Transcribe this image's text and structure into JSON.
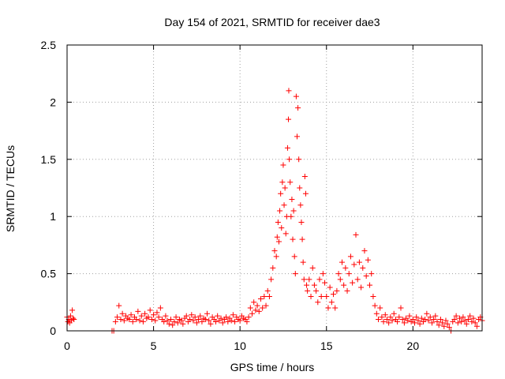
{
  "chart_data": {
    "type": "scatter",
    "title": "Day 154 of 2021, SRMTID for receiver dae3",
    "xlabel": "GPS time / hours",
    "ylabel": "SRMTID / TECUs",
    "xlim": [
      0,
      24
    ],
    "ylim": [
      0,
      2.5
    ],
    "x_ticks": [
      0,
      5,
      10,
      15,
      20
    ],
    "x_tick_labels": [
      "0",
      "5",
      "10",
      "15",
      "20"
    ],
    "y_ticks": [
      0,
      0.5,
      1,
      1.5,
      2,
      2.5
    ],
    "y_tick_labels": [
      "0",
      "0.5",
      "1",
      "1.5",
      "2",
      "2.5"
    ],
    "grid": true,
    "marker": "plus",
    "color": "#ff0000",
    "series": [
      {
        "name": "dae3",
        "points": [
          [
            0.0,
            0.12
          ],
          [
            0.05,
            0.08
          ],
          [
            0.1,
            0.1
          ],
          [
            0.15,
            0.07
          ],
          [
            0.2,
            0.13
          ],
          [
            0.25,
            0.09
          ],
          [
            0.3,
            0.18
          ],
          [
            0.35,
            0.11
          ],
          [
            0.4,
            0.1
          ],
          [
            2.6,
            0.0
          ],
          [
            2.7,
            0.0
          ],
          [
            2.8,
            0.08
          ],
          [
            2.9,
            0.12
          ],
          [
            3.0,
            0.22
          ],
          [
            3.1,
            0.1
          ],
          [
            3.2,
            0.15
          ],
          [
            3.3,
            0.09
          ],
          [
            3.4,
            0.13
          ],
          [
            3.5,
            0.11
          ],
          [
            3.6,
            0.1
          ],
          [
            3.7,
            0.14
          ],
          [
            3.8,
            0.08
          ],
          [
            3.9,
            0.12
          ],
          [
            4.0,
            0.1
          ],
          [
            4.1,
            0.17
          ],
          [
            4.2,
            0.09
          ],
          [
            4.3,
            0.13
          ],
          [
            4.4,
            0.08
          ],
          [
            4.5,
            0.15
          ],
          [
            4.6,
            0.11
          ],
          [
            4.7,
            0.12
          ],
          [
            4.8,
            0.18
          ],
          [
            4.9,
            0.1
          ],
          [
            5.0,
            0.14
          ],
          [
            5.1,
            0.09
          ],
          [
            5.2,
            0.16
          ],
          [
            5.3,
            0.12
          ],
          [
            5.4,
            0.2
          ],
          [
            5.5,
            0.1
          ],
          [
            5.6,
            0.08
          ],
          [
            5.7,
            0.13
          ],
          [
            5.8,
            0.09
          ],
          [
            5.9,
            0.06
          ],
          [
            6.0,
            0.1
          ],
          [
            6.1,
            0.05
          ],
          [
            6.2,
            0.08
          ],
          [
            6.3,
            0.12
          ],
          [
            6.4,
            0.07
          ],
          [
            6.5,
            0.1
          ],
          [
            6.6,
            0.09
          ],
          [
            6.7,
            0.06
          ],
          [
            6.8,
            0.11
          ],
          [
            6.9,
            0.13
          ],
          [
            7.0,
            0.08
          ],
          [
            7.1,
            0.1
          ],
          [
            7.2,
            0.14
          ],
          [
            7.3,
            0.09
          ],
          [
            7.4,
            0.12
          ],
          [
            7.5,
            0.07
          ],
          [
            7.6,
            0.1
          ],
          [
            7.7,
            0.13
          ],
          [
            7.8,
            0.08
          ],
          [
            7.9,
            0.11
          ],
          [
            8.0,
            0.1
          ],
          [
            8.1,
            0.15
          ],
          [
            8.2,
            0.09
          ],
          [
            8.3,
            0.06
          ],
          [
            8.4,
            0.12
          ],
          [
            8.5,
            0.1
          ],
          [
            8.6,
            0.08
          ],
          [
            8.7,
            0.13
          ],
          [
            8.8,
            0.09
          ],
          [
            8.9,
            0.11
          ],
          [
            9.0,
            0.07
          ],
          [
            9.1,
            0.1
          ],
          [
            9.2,
            0.12
          ],
          [
            9.3,
            0.08
          ],
          [
            9.4,
            0.11
          ],
          [
            9.5,
            0.09
          ],
          [
            9.6,
            0.14
          ],
          [
            9.7,
            0.08
          ],
          [
            9.8,
            0.12
          ],
          [
            9.9,
            0.1
          ],
          [
            10.0,
            0.09
          ],
          [
            10.1,
            0.13
          ],
          [
            10.2,
            0.11
          ],
          [
            10.3,
            0.1
          ],
          [
            10.4,
            0.08
          ],
          [
            10.5,
            0.12
          ],
          [
            10.6,
            0.2
          ],
          [
            10.7,
            0.15
          ],
          [
            10.8,
            0.25
          ],
          [
            10.9,
            0.18
          ],
          [
            11.0,
            0.22
          ],
          [
            11.1,
            0.17
          ],
          [
            11.2,
            0.28
          ],
          [
            11.3,
            0.2
          ],
          [
            11.4,
            0.3
          ],
          [
            11.5,
            0.22
          ],
          [
            11.6,
            0.35
          ],
          [
            11.7,
            0.3
          ],
          [
            11.8,
            0.45
          ],
          [
            11.9,
            0.55
          ],
          [
            12.0,
            0.7
          ],
          [
            12.1,
            0.65
          ],
          [
            12.15,
            0.82
          ],
          [
            12.2,
            0.95
          ],
          [
            12.25,
            0.78
          ],
          [
            12.3,
            1.05
          ],
          [
            12.35,
            1.2
          ],
          [
            12.4,
            0.9
          ],
          [
            12.45,
            1.3
          ],
          [
            12.5,
            1.45
          ],
          [
            12.55,
            1.1
          ],
          [
            12.6,
            1.25
          ],
          [
            12.65,
            0.85
          ],
          [
            12.7,
            1.0
          ],
          [
            12.75,
            1.6
          ],
          [
            12.8,
            1.85
          ],
          [
            12.82,
            2.1
          ],
          [
            12.85,
            1.5
          ],
          [
            12.9,
            1.3
          ],
          [
            12.95,
            1.0
          ],
          [
            13.0,
            1.15
          ],
          [
            13.05,
            0.8
          ],
          [
            13.1,
            1.05
          ],
          [
            13.15,
            0.65
          ],
          [
            13.2,
            0.5
          ],
          [
            13.25,
            2.05
          ],
          [
            13.3,
            1.7
          ],
          [
            13.35,
            1.95
          ],
          [
            13.4,
            1.5
          ],
          [
            13.45,
            1.25
          ],
          [
            13.5,
            1.1
          ],
          [
            13.55,
            0.95
          ],
          [
            13.6,
            0.8
          ],
          [
            13.65,
            0.6
          ],
          [
            13.7,
            0.45
          ],
          [
            13.75,
            1.35
          ],
          [
            13.8,
            1.2
          ],
          [
            13.85,
            0.4
          ],
          [
            13.9,
            0.35
          ],
          [
            14.0,
            0.45
          ],
          [
            14.1,
            0.3
          ],
          [
            14.2,
            0.55
          ],
          [
            14.3,
            0.4
          ],
          [
            14.4,
            0.35
          ],
          [
            14.5,
            0.25
          ],
          [
            14.6,
            0.45
          ],
          [
            14.7,
            0.3
          ],
          [
            14.8,
            0.5
          ],
          [
            14.9,
            0.42
          ],
          [
            15.0,
            0.3
          ],
          [
            15.1,
            0.2
          ],
          [
            15.2,
            0.38
          ],
          [
            15.3,
            0.25
          ],
          [
            15.4,
            0.32
          ],
          [
            15.5,
            0.2
          ],
          [
            15.6,
            0.35
          ],
          [
            15.7,
            0.5
          ],
          [
            15.8,
            0.45
          ],
          [
            15.9,
            0.6
          ],
          [
            16.0,
            0.4
          ],
          [
            16.1,
            0.55
          ],
          [
            16.2,
            0.35
          ],
          [
            16.3,
            0.5
          ],
          [
            16.4,
            0.65
          ],
          [
            16.5,
            0.42
          ],
          [
            16.6,
            0.58
          ],
          [
            16.7,
            0.84
          ],
          [
            16.8,
            0.45
          ],
          [
            16.9,
            0.6
          ],
          [
            17.0,
            0.38
          ],
          [
            17.1,
            0.55
          ],
          [
            17.2,
            0.7
          ],
          [
            17.3,
            0.48
          ],
          [
            17.4,
            0.62
          ],
          [
            17.5,
            0.4
          ],
          [
            17.6,
            0.5
          ],
          [
            17.7,
            0.3
          ],
          [
            17.8,
            0.22
          ],
          [
            17.9,
            0.15
          ],
          [
            18.0,
            0.1
          ],
          [
            18.1,
            0.2
          ],
          [
            18.2,
            0.12
          ],
          [
            18.3,
            0.08
          ],
          [
            18.4,
            0.14
          ],
          [
            18.5,
            0.1
          ],
          [
            18.6,
            0.07
          ],
          [
            18.7,
            0.12
          ],
          [
            18.8,
            0.09
          ],
          [
            18.9,
            0.15
          ],
          [
            19.0,
            0.1
          ],
          [
            19.1,
            0.08
          ],
          [
            19.2,
            0.12
          ],
          [
            19.3,
            0.2
          ],
          [
            19.4,
            0.1
          ],
          [
            19.5,
            0.07
          ],
          [
            19.6,
            0.11
          ],
          [
            19.7,
            0.09
          ],
          [
            19.8,
            0.13
          ],
          [
            19.9,
            0.08
          ],
          [
            20.0,
            0.1
          ],
          [
            20.1,
            0.07
          ],
          [
            20.2,
            0.12
          ],
          [
            20.3,
            0.09
          ],
          [
            20.4,
            0.06
          ],
          [
            20.5,
            0.11
          ],
          [
            20.6,
            0.08
          ],
          [
            20.7,
            0.1
          ],
          [
            20.8,
            0.15
          ],
          [
            20.9,
            0.09
          ],
          [
            21.0,
            0.12
          ],
          [
            21.1,
            0.07
          ],
          [
            21.2,
            0.1
          ],
          [
            21.3,
            0.13
          ],
          [
            21.4,
            0.08
          ],
          [
            21.5,
            0.05
          ],
          [
            21.6,
            0.1
          ],
          [
            21.7,
            0.07
          ],
          [
            21.8,
            0.04
          ],
          [
            21.9,
            0.09
          ],
          [
            22.0,
            0.06
          ],
          [
            22.1,
            0.03
          ],
          [
            22.2,
            0.0
          ],
          [
            22.3,
            0.08
          ],
          [
            22.4,
            0.1
          ],
          [
            22.5,
            0.13
          ],
          [
            22.6,
            0.07
          ],
          [
            22.7,
            0.11
          ],
          [
            22.8,
            0.08
          ],
          [
            22.9,
            0.12
          ],
          [
            23.0,
            0.09
          ],
          [
            23.1,
            0.06
          ],
          [
            23.2,
            0.1
          ],
          [
            23.3,
            0.13
          ],
          [
            23.4,
            0.08
          ],
          [
            23.5,
            0.11
          ],
          [
            23.6,
            0.07
          ],
          [
            23.7,
            0.04
          ],
          [
            23.8,
            0.1
          ],
          [
            23.9,
            0.12
          ],
          [
            24.0,
            0.09
          ]
        ]
      }
    ]
  }
}
